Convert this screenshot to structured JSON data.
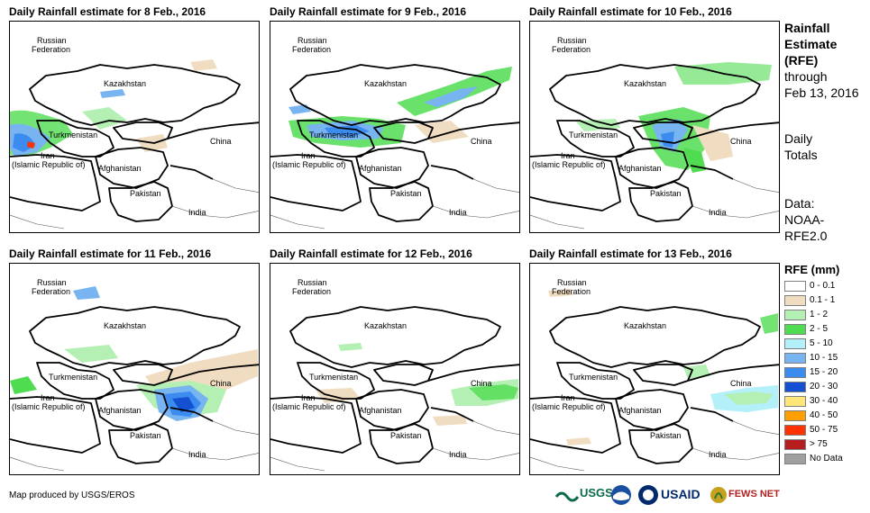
{
  "panels": [
    {
      "title": "Daily Rainfall estimate for 8 Feb., 2016"
    },
    {
      "title": "Daily Rainfall estimate for 9 Feb., 2016"
    },
    {
      "title": "Daily Rainfall estimate for 10 Feb., 2016"
    },
    {
      "title": "Daily Rainfall estimate for 11 Feb., 2016"
    },
    {
      "title": "Daily Rainfall estimate for 12 Feb., 2016"
    },
    {
      "title": "Daily Rainfall estimate for 13 Feb., 2016"
    }
  ],
  "map_labels": {
    "russia_1": "Russian",
    "russia_2": "Federation",
    "kazakhstan": "Kazakhstan",
    "turkmenistan": "Turkmenistan",
    "china": "China",
    "iran_1": "Iran",
    "iran_2": "(Islamic Republic of)",
    "afghanistan": "Afghanistan",
    "pakistan": "Pakistan",
    "india": "India"
  },
  "side": {
    "title_1": "Rainfall",
    "title_2": "Estimate",
    "title_3": "(RFE)",
    "through": "through",
    "date": "Feb 13, 2016",
    "daily": "Daily",
    "totals": "Totals",
    "data_1": "Data:",
    "data_2": "NOAA-",
    "data_3": "RFE2.0"
  },
  "legend": {
    "title": "RFE (mm)",
    "items": [
      {
        "label": "0 - 0.1",
        "color": "#ffffff"
      },
      {
        "label": "0.1 - 1",
        "color": "#f0dcc0"
      },
      {
        "label": "1 - 2",
        "color": "#b4f0b4"
      },
      {
        "label": "2 - 5",
        "color": "#50dc50"
      },
      {
        "label": "5 - 10",
        "color": "#b4f0fa"
      },
      {
        "label": "10 - 15",
        "color": "#78b4f0"
      },
      {
        "label": "15 - 20",
        "color": "#3c8cf0"
      },
      {
        "label": "20 - 30",
        "color": "#1450d2"
      },
      {
        "label": "30 - 40",
        "color": "#ffe678"
      },
      {
        "label": "40 - 50",
        "color": "#ffa000"
      },
      {
        "label": "50 - 75",
        "color": "#ff3200"
      },
      {
        "label": "> 75",
        "color": "#b41e1e"
      },
      {
        "label": "No Data",
        "color": "#a0a0a0"
      }
    ]
  },
  "credit": "Map produced by USGS/EROS",
  "logos": {
    "usgs": "USGS",
    "usaid": "USAID",
    "fews": "FEWS NET"
  }
}
